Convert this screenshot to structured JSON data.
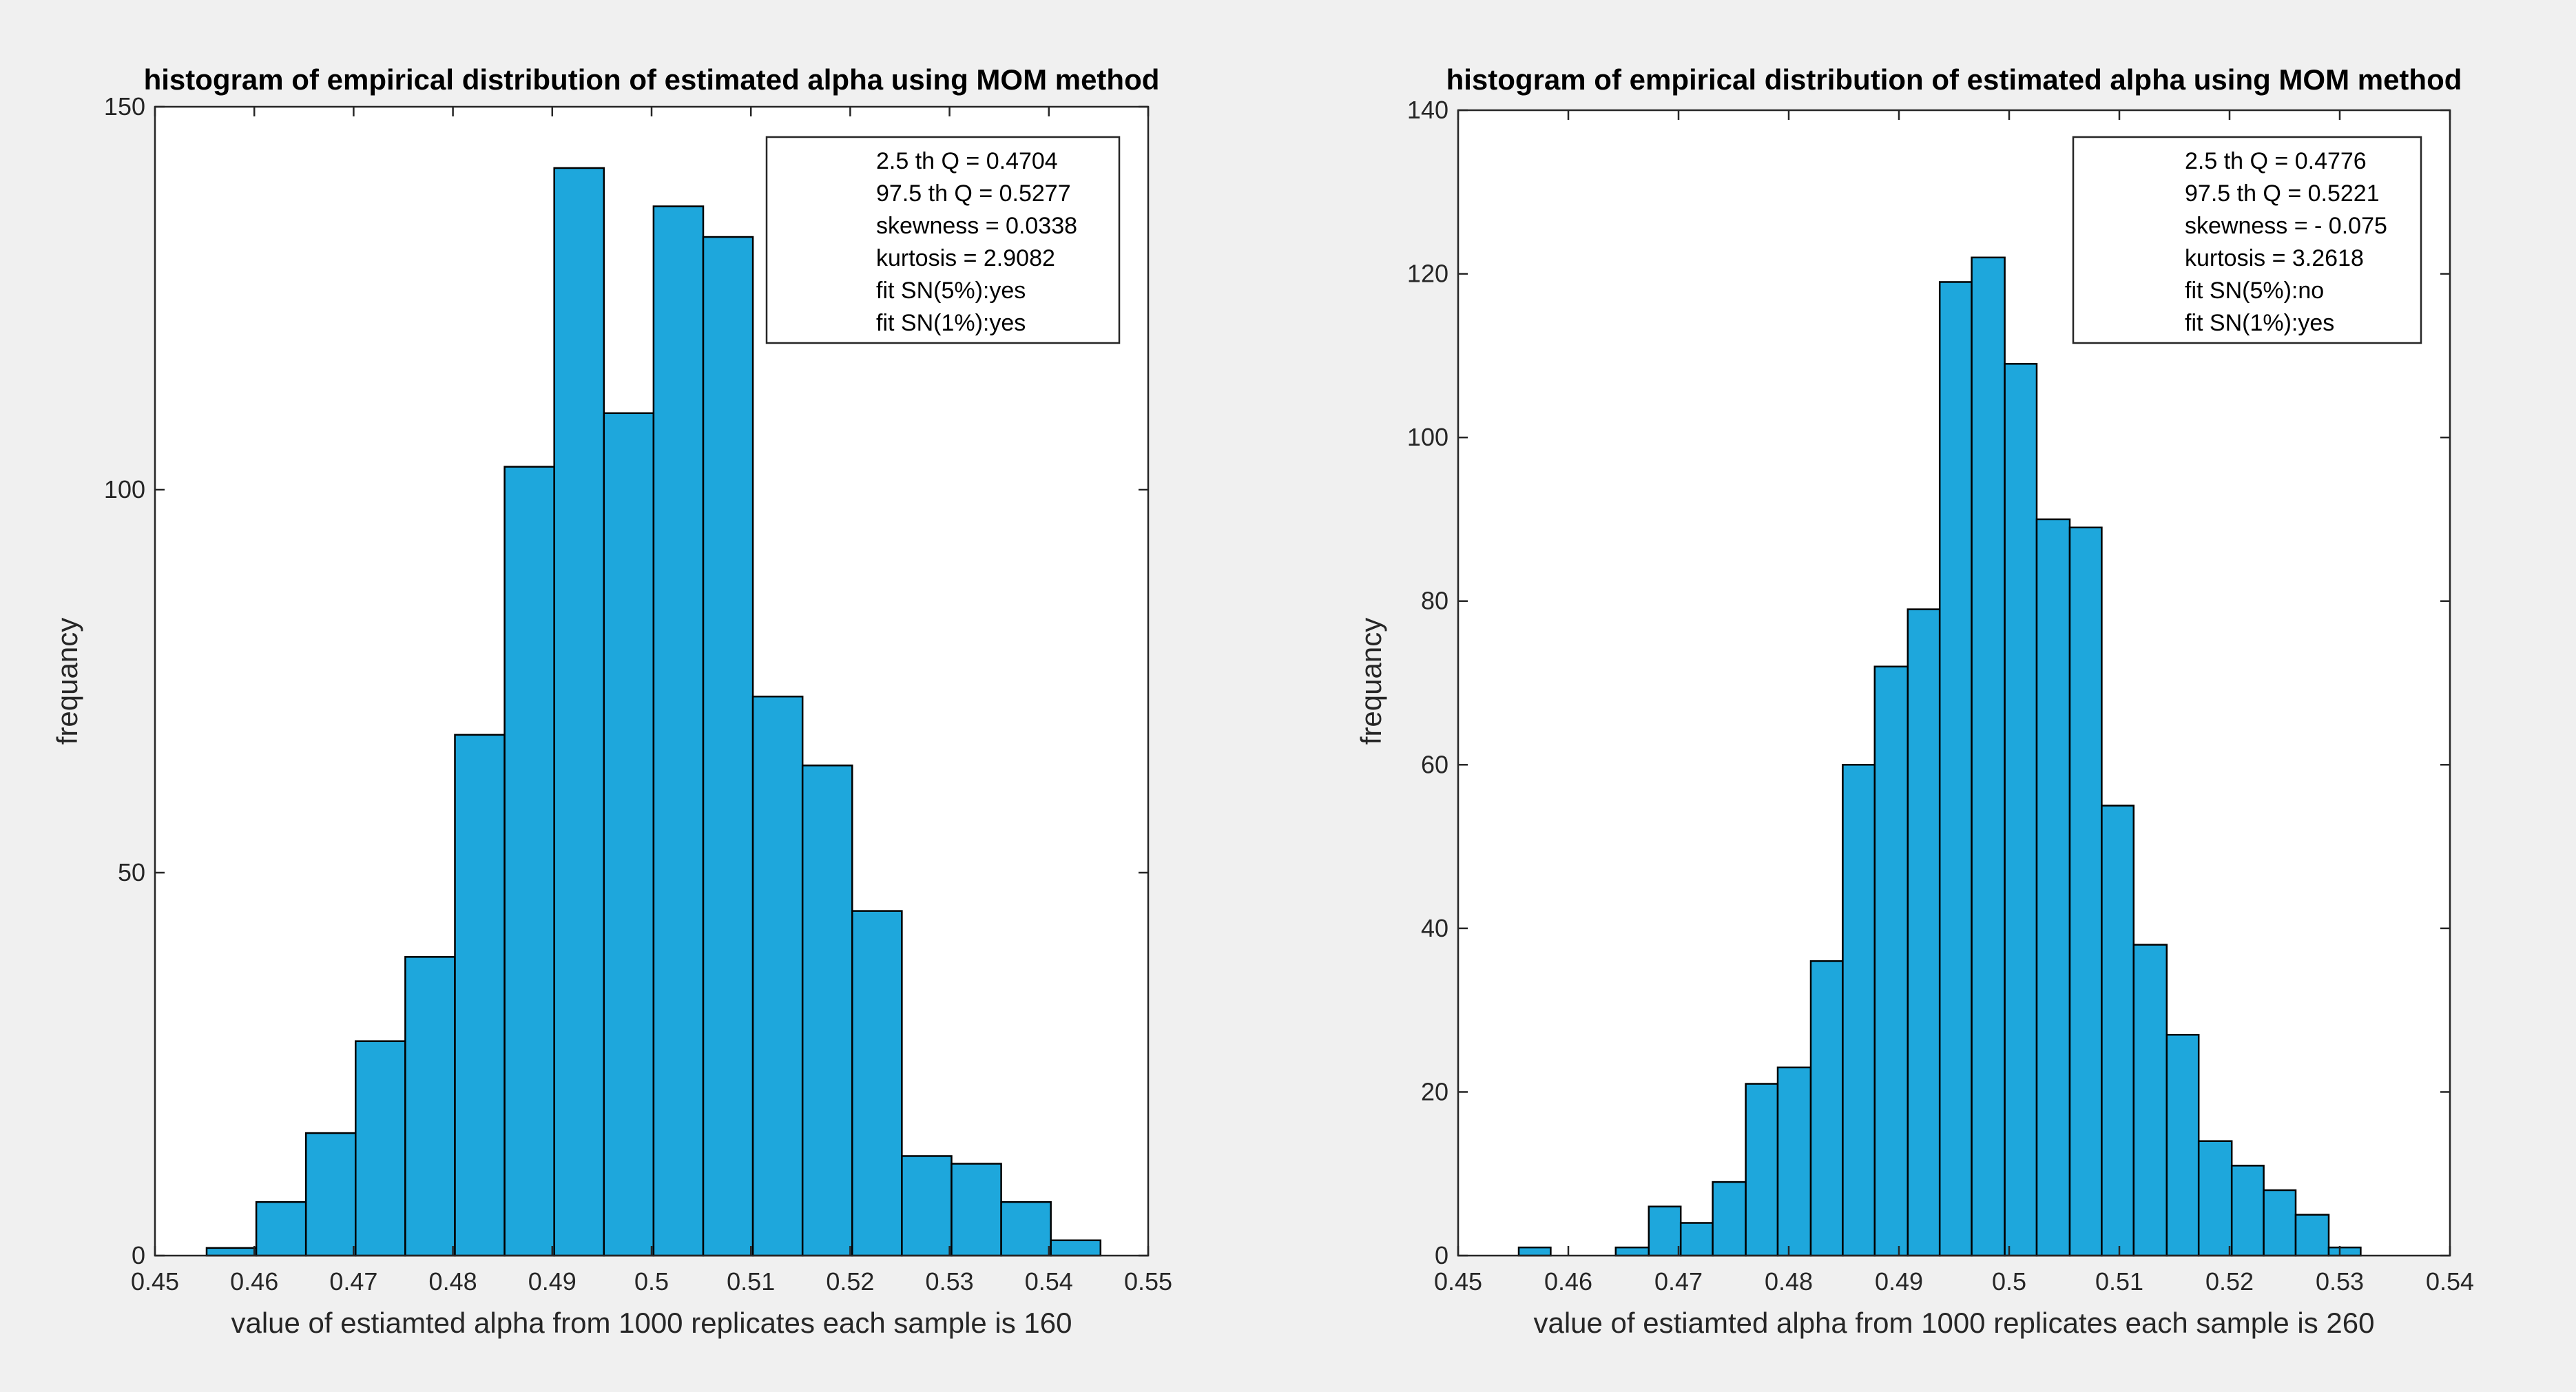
{
  "figure": {
    "background": "#f0f0f0",
    "bar_color": "#1ea7dc",
    "bar_edge": "#000000"
  },
  "chart_data": [
    {
      "type": "bar",
      "title": "histogram of empirical distribution of estimated alpha using MOM method",
      "xlabel": "value of estiamted alpha from 1000 replicates each sample is 160",
      "ylabel": "frequancy",
      "xlim": [
        0.45,
        0.55
      ],
      "ylim": [
        0,
        150
      ],
      "xticks": [
        0.45,
        0.46,
        0.47,
        0.48,
        0.49,
        0.5,
        0.51,
        0.52,
        0.53,
        0.54,
        0.55
      ],
      "xtick_labels": [
        "0.45",
        "0.46",
        "0.47",
        "0.48",
        "0.49",
        "0.5",
        "0.51",
        "0.52",
        "0.53",
        "0.54",
        "0.55"
      ],
      "yticks": [
        0,
        50,
        100,
        150
      ],
      "ytick_labels": [
        "0",
        "50",
        "100",
        "150"
      ],
      "bin_edges": [
        0.4552,
        0.4602,
        0.4652,
        0.4702,
        0.4752,
        0.4802,
        0.4852,
        0.4902,
        0.4952,
        0.5002,
        0.5052,
        0.5102,
        0.5152,
        0.5202,
        0.5252,
        0.5302,
        0.5352,
        0.5402,
        0.5452
      ],
      "values": [
        1,
        7,
        16,
        28,
        39,
        68,
        103,
        142,
        110,
        137,
        133,
        73,
        64,
        45,
        13,
        12,
        7,
        2
      ],
      "legend": [
        "2.5 th Q = 0.4704",
        "97.5 th Q = 0.5277",
        "skewness =  0.0338",
        "kurtosis = 2.9082",
        "fit SN(5%):yes",
        "fit SN(1%):yes"
      ]
    },
    {
      "type": "bar",
      "title": "histogram of empirical distribution of estimated alpha using MOM method",
      "xlabel": "value of estiamted alpha from 1000 replicates each sample is 260",
      "ylabel": "frequancy",
      "xlim": [
        0.45,
        0.54
      ],
      "ylim": [
        0,
        140
      ],
      "xticks": [
        0.45,
        0.46,
        0.47,
        0.48,
        0.49,
        0.5,
        0.51,
        0.52,
        0.53,
        0.54
      ],
      "xtick_labels": [
        "0.45",
        "0.46",
        "0.47",
        "0.48",
        "0.49",
        "0.5",
        "0.51",
        "0.52",
        "0.53",
        "0.54"
      ],
      "yticks": [
        0,
        20,
        40,
        60,
        80,
        100,
        120,
        140
      ],
      "ytick_labels": [
        "0",
        "20",
        "40",
        "60",
        "80",
        "100",
        "120",
        "140"
      ],
      "bin_edges": [
        0.4555,
        0.4584,
        0.4614,
        0.4643,
        0.4673,
        0.4702,
        0.4731,
        0.4761,
        0.479,
        0.482,
        0.4849,
        0.4878,
        0.4908,
        0.4937,
        0.4966,
        0.4996,
        0.5025,
        0.5055,
        0.5084,
        0.5113,
        0.5143,
        0.5172,
        0.5202,
        0.5231,
        0.526,
        0.529,
        0.5319,
        0.5349
      ],
      "values": [
        1,
        0,
        0,
        1,
        6,
        4,
        9,
        21,
        23,
        36,
        60,
        72,
        79,
        119,
        122,
        109,
        90,
        89,
        55,
        38,
        27,
        14,
        11,
        8,
        5,
        1,
        0
      ],
      "legend": [
        "2.5 th Q = 0.4776",
        "97.5 th Q = 0.5221",
        "skewness = - 0.075",
        "kurtosis = 3.2618",
        "fit SN(5%):no",
        "fit SN(1%):yes"
      ]
    }
  ]
}
